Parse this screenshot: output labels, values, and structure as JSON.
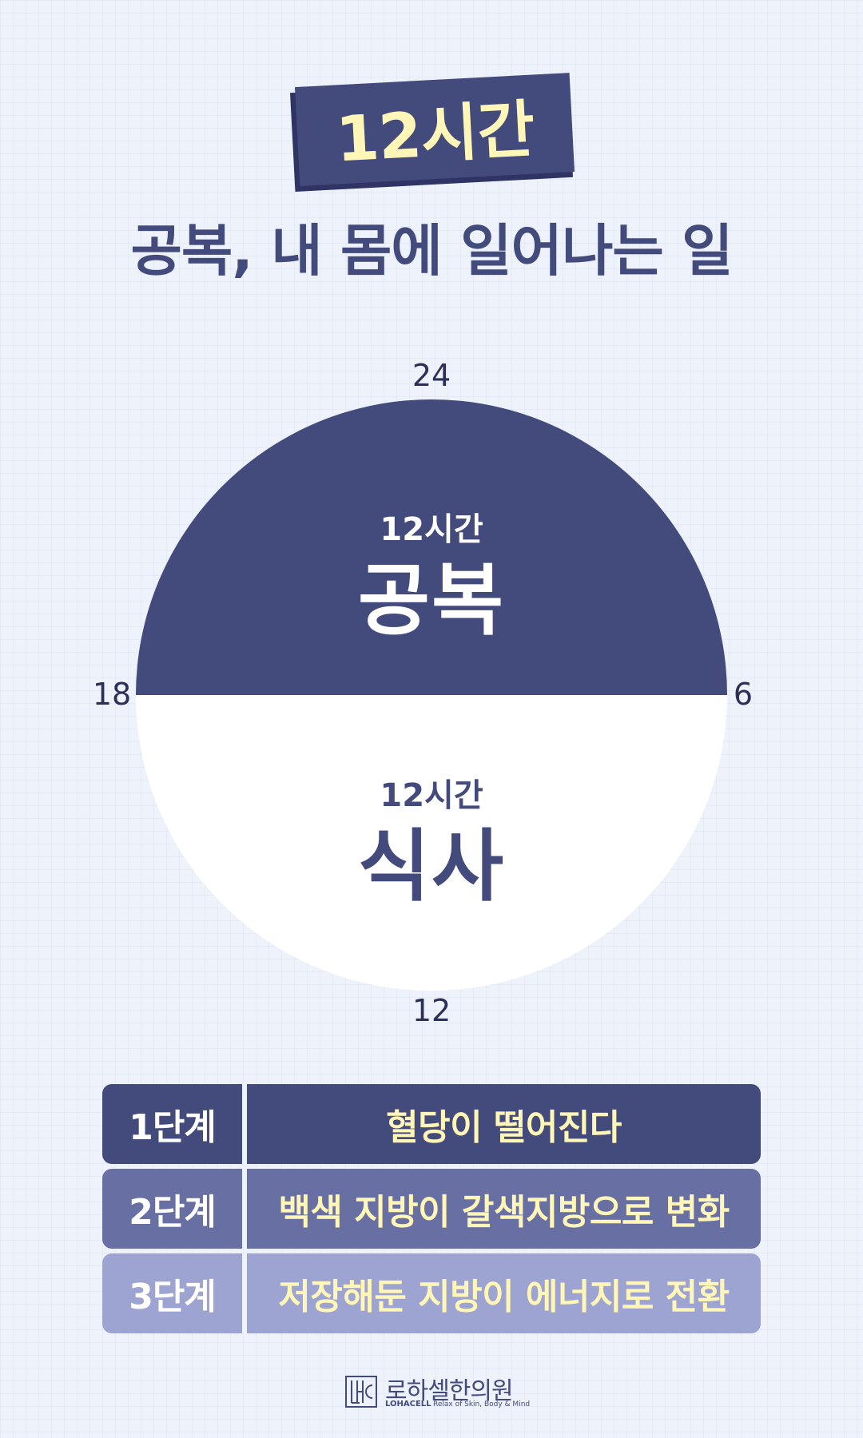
{
  "title": {
    "badge": "12시간",
    "headline": "공복, 내 몸에 일어나는 일"
  },
  "clock": {
    "labels": {
      "top": "24",
      "right": "6",
      "bottom": "12",
      "left": "18"
    },
    "top_half": {
      "small": "12시간",
      "big": "공복",
      "color": "#434a7c"
    },
    "bottom_half": {
      "small": "12시간",
      "big": "식사",
      "color": "#ffffff"
    }
  },
  "stages": [
    {
      "stage": "1단계",
      "description": "혈당이 떨어진다",
      "color": "#434a7c"
    },
    {
      "stage": "2단계",
      "description": "백색 지방이 갈색지방으로 변화",
      "color": "#686fa3"
    },
    {
      "stage": "3단계",
      "description": "저장해둔 지방이 에너지로 전환",
      "color": "#9ea4d1"
    }
  ],
  "footer": {
    "brand_kr": "로하셀한의원",
    "brand_en": "LOHACELL",
    "tagline": "Relax of Skin, Body & Mind",
    "logo_icon": "lohacell-logo-icon"
  }
}
